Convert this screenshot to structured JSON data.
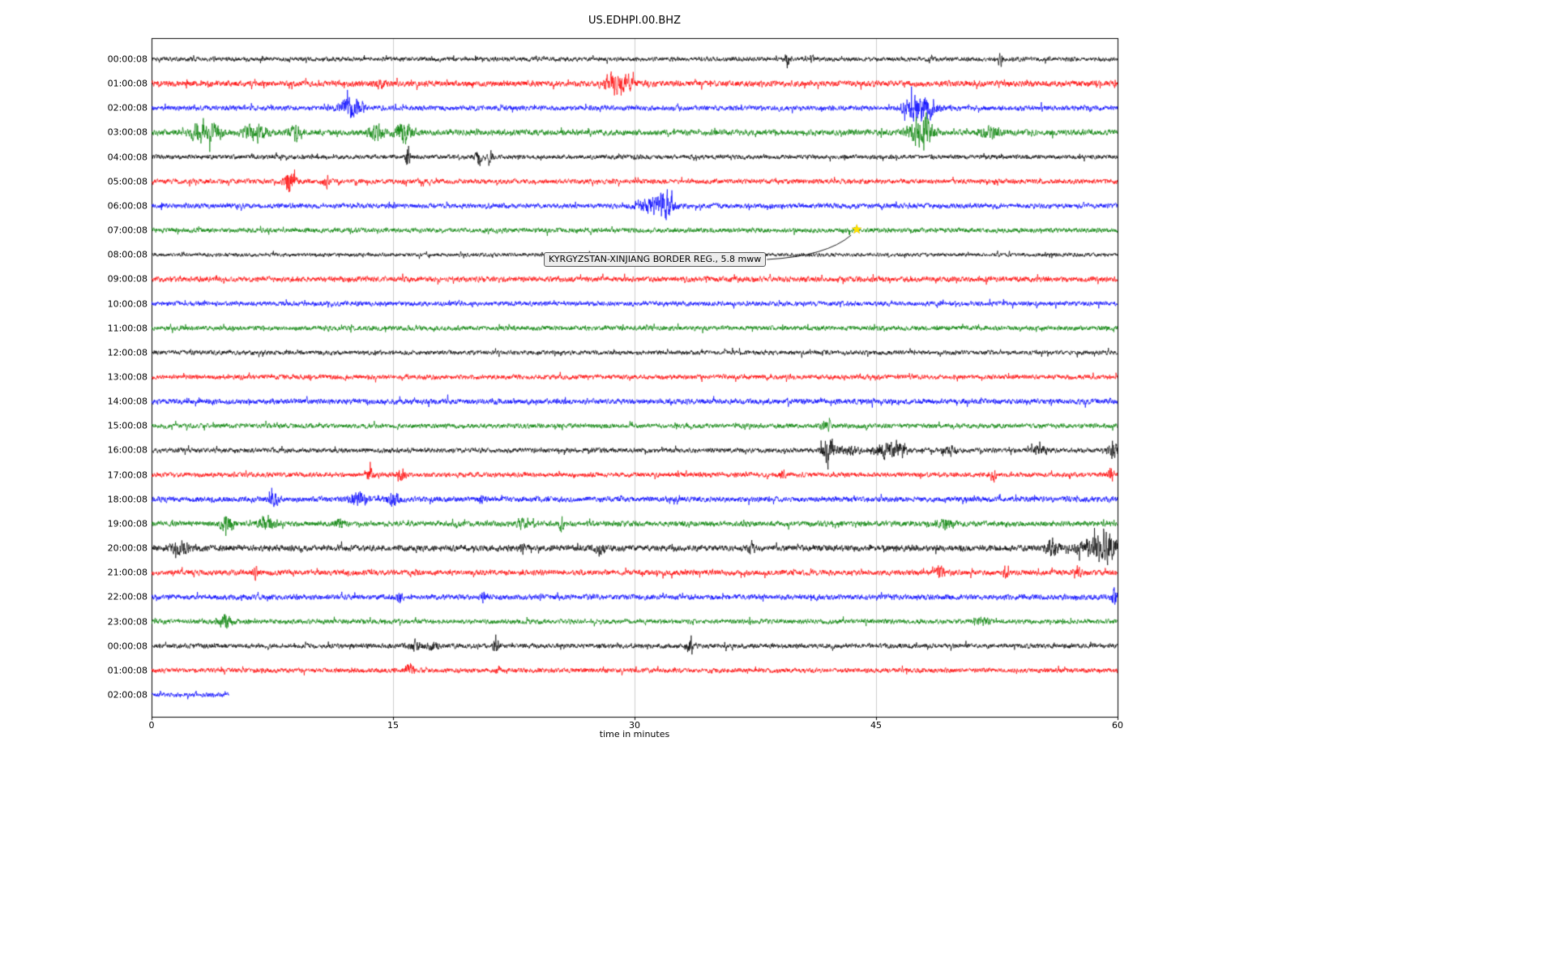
{
  "figure": {
    "background": "#ffffff"
  },
  "chart_data": {
    "type": "line",
    "subtype": "helicorder-seismogram",
    "title": "US.EDHPI.00.BHZ",
    "xlabel": "time in minutes",
    "xlim": [
      0,
      60
    ],
    "x_ticks": [
      0,
      15,
      30,
      45,
      60
    ],
    "grid": {
      "vertical_minutes": [
        15,
        30,
        45
      ],
      "color": "#cccccc"
    },
    "trace_colors_cycle": [
      "#000000",
      "#ff0000",
      "#0000ff",
      "#008000"
    ],
    "events_format": "[minute, extra_amplitude_px, width_minutes]",
    "rows": [
      {
        "label": "00:00:08",
        "color": "#000000",
        "base_amp": 2.6,
        "duration": 60,
        "events": [
          [
            39.5,
            8,
            0.12
          ],
          [
            41.0,
            4,
            0.1
          ],
          [
            52.7,
            9,
            0.08
          ]
        ]
      },
      {
        "label": "01:00:08",
        "color": "#ff0000",
        "base_amp": 3.4,
        "duration": 60,
        "events": [
          [
            14.2,
            4,
            0.2
          ],
          [
            28.7,
            10,
            0.45
          ],
          [
            29.6,
            7,
            0.25
          ]
        ]
      },
      {
        "label": "02:00:08",
        "color": "#0000ff",
        "base_amp": 3.0,
        "duration": 60,
        "events": [
          [
            12.2,
            10,
            0.35
          ],
          [
            12.9,
            8,
            0.25
          ],
          [
            47.4,
            14,
            0.45
          ],
          [
            48.3,
            10,
            0.35
          ]
        ]
      },
      {
        "label": "03:00:08",
        "color": "#008000",
        "base_amp": 3.4,
        "duration": 60,
        "events": [
          [
            2.9,
            12,
            0.3
          ],
          [
            3.9,
            10,
            0.35
          ],
          [
            6.4,
            9,
            0.45
          ],
          [
            9.0,
            7,
            0.3
          ],
          [
            14.0,
            9,
            0.3
          ],
          [
            15.7,
            13,
            0.35
          ],
          [
            47.8,
            16,
            0.5
          ],
          [
            52.1,
            7,
            0.4
          ]
        ]
      },
      {
        "label": "04:00:08",
        "color": "#000000",
        "base_amp": 2.6,
        "duration": 60,
        "events": [
          [
            15.9,
            13,
            0.1
          ],
          [
            20.3,
            9,
            0.15
          ],
          [
            21.1,
            6,
            0.1
          ]
        ]
      },
      {
        "label": "05:00:08",
        "color": "#ff0000",
        "base_amp": 2.8,
        "duration": 60,
        "events": [
          [
            8.6,
            12,
            0.25
          ],
          [
            10.9,
            7,
            0.15
          ]
        ]
      },
      {
        "label": "06:00:08",
        "color": "#0000ff",
        "base_amp": 3.0,
        "duration": 60,
        "events": [
          [
            30.4,
            5,
            0.3
          ],
          [
            31.1,
            8,
            0.25
          ],
          [
            31.9,
            16,
            0.35
          ]
        ]
      },
      {
        "label": "07:00:08",
        "color": "#008000",
        "base_amp": 2.8,
        "duration": 60,
        "events": []
      },
      {
        "label": "08:00:08",
        "color": "#000000",
        "base_amp": 2.2,
        "duration": 60,
        "events": []
      },
      {
        "label": "09:00:08",
        "color": "#ff0000",
        "base_amp": 3.2,
        "duration": 60,
        "events": []
      },
      {
        "label": "10:00:08",
        "color": "#0000ff",
        "base_amp": 2.8,
        "duration": 60,
        "events": []
      },
      {
        "label": "11:00:08",
        "color": "#008000",
        "base_amp": 2.8,
        "duration": 60,
        "events": []
      },
      {
        "label": "12:00:08",
        "color": "#000000",
        "base_amp": 2.6,
        "duration": 60,
        "events": []
      },
      {
        "label": "13:00:08",
        "color": "#ff0000",
        "base_amp": 2.8,
        "duration": 60,
        "events": []
      },
      {
        "label": "14:00:08",
        "color": "#0000ff",
        "base_amp": 3.2,
        "duration": 60,
        "events": []
      },
      {
        "label": "15:00:08",
        "color": "#008000",
        "base_amp": 2.8,
        "duration": 60,
        "events": [
          [
            41.9,
            4,
            0.25
          ]
        ]
      },
      {
        "label": "16:00:08",
        "color": "#000000",
        "base_amp": 2.8,
        "duration": 60,
        "events": [
          [
            42.0,
            18,
            0.25
          ],
          [
            43.4,
            5,
            0.4
          ],
          [
            45.6,
            8,
            0.45
          ],
          [
            46.4,
            7,
            0.3
          ],
          [
            49.6,
            4,
            0.3
          ],
          [
            55.2,
            3,
            0.4
          ],
          [
            59.7,
            10,
            0.2
          ]
        ]
      },
      {
        "label": "17:00:08",
        "color": "#ff0000",
        "base_amp": 2.8,
        "duration": 60,
        "events": [
          [
            13.6,
            7,
            0.15
          ],
          [
            15.5,
            8,
            0.18
          ],
          [
            39.2,
            5,
            0.12
          ],
          [
            52.3,
            6,
            0.12
          ],
          [
            59.6,
            8,
            0.12
          ]
        ]
      },
      {
        "label": "18:00:08",
        "color": "#0000ff",
        "base_amp": 3.2,
        "duration": 60,
        "events": [
          [
            7.6,
            6,
            0.25
          ],
          [
            12.9,
            8,
            0.35
          ],
          [
            15.0,
            7,
            0.25
          ],
          [
            20.5,
            4,
            0.15
          ]
        ]
      },
      {
        "label": "19:00:08",
        "color": "#008000",
        "base_amp": 3.2,
        "duration": 60,
        "events": [
          [
            4.7,
            8,
            0.3
          ],
          [
            7.2,
            7,
            0.35
          ],
          [
            11.7,
            6,
            0.2
          ],
          [
            23.0,
            6,
            0.2
          ],
          [
            25.5,
            6,
            0.12
          ],
          [
            49.3,
            7,
            0.3
          ]
        ]
      },
      {
        "label": "20:00:08",
        "color": "#000000",
        "base_amp": 3.6,
        "duration": 60,
        "events": [
          [
            1.8,
            6,
            0.4
          ],
          [
            23.0,
            7,
            0.08
          ],
          [
            27.8,
            4,
            0.2
          ],
          [
            37.2,
            4,
            0.2
          ],
          [
            56.0,
            8,
            0.3
          ],
          [
            58.6,
            10,
            0.7
          ],
          [
            59.6,
            10,
            0.4
          ]
        ]
      },
      {
        "label": "21:00:08",
        "color": "#ff0000",
        "base_amp": 3.2,
        "duration": 60,
        "events": [
          [
            6.4,
            8,
            0.12
          ],
          [
            48.9,
            7,
            0.18
          ],
          [
            53.0,
            6,
            0.12
          ],
          [
            57.5,
            5,
            0.18
          ]
        ]
      },
      {
        "label": "22:00:08",
        "color": "#0000ff",
        "base_amp": 3.2,
        "duration": 60,
        "events": [
          [
            15.4,
            6,
            0.12
          ],
          [
            20.6,
            5,
            0.12
          ],
          [
            59.8,
            9,
            0.15
          ]
        ]
      },
      {
        "label": "23:00:08",
        "color": "#008000",
        "base_amp": 2.8,
        "duration": 60,
        "events": [
          [
            4.6,
            7,
            0.25
          ],
          [
            51.6,
            6,
            0.25
          ]
        ]
      },
      {
        "label": "00:00:08",
        "color": "#000000",
        "base_amp": 2.8,
        "duration": 60,
        "events": [
          [
            16.4,
            6,
            0.25
          ],
          [
            17.5,
            5,
            0.2
          ],
          [
            21.4,
            14,
            0.1
          ],
          [
            33.4,
            6,
            0.12
          ]
        ]
      },
      {
        "label": "01:00:08",
        "color": "#ff0000",
        "base_amp": 2.8,
        "duration": 60,
        "events": [
          [
            16.0,
            7,
            0.18
          ],
          [
            21.5,
            4,
            0.12
          ]
        ]
      },
      {
        "label": "02:00:08",
        "color": "#0000ff",
        "base_amp": 2.6,
        "duration": 4.8,
        "events": []
      }
    ],
    "annotation": {
      "text": "KYRGYZSTAN-XINJIANG BORDER REG.,  5.8 mww",
      "row_index": 7,
      "row_label": "07:00:08",
      "minute": 43.8,
      "marker": "star",
      "marker_color": "#ffe100"
    }
  }
}
